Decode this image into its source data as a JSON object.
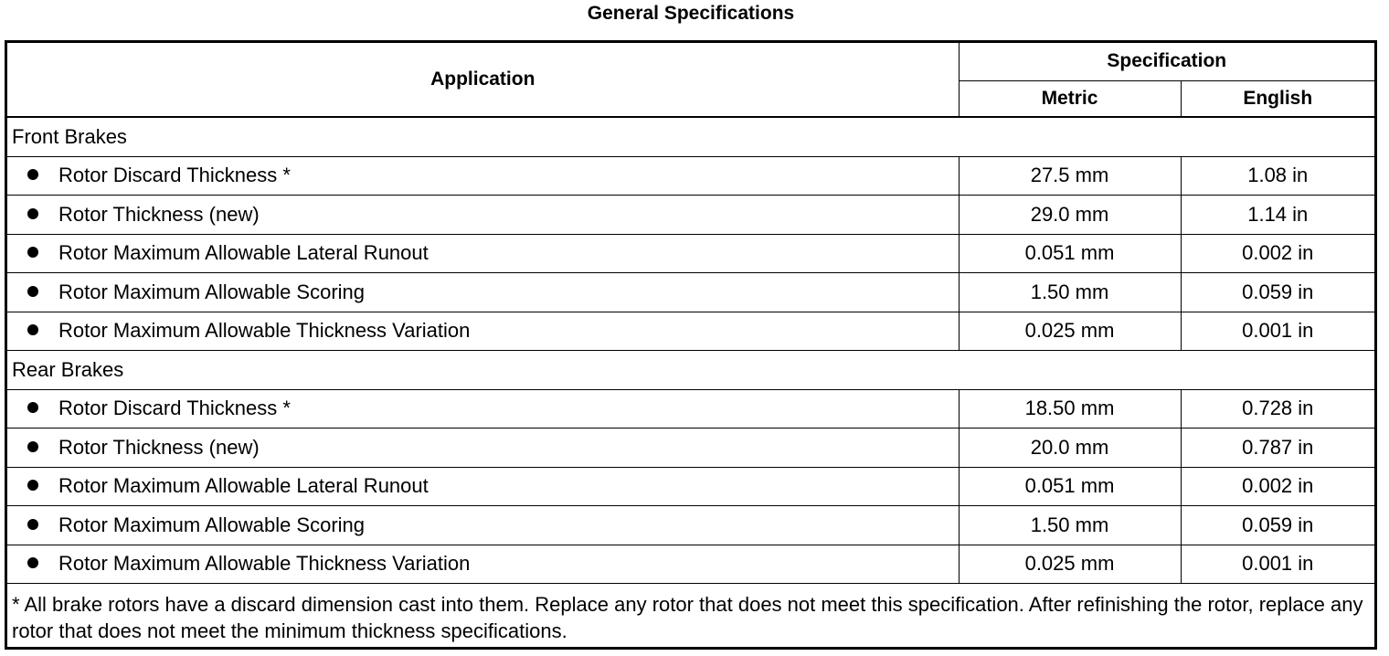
{
  "title": "General Specifications",
  "headers": {
    "application": "Application",
    "specification": "Specification",
    "metric": "Metric",
    "english": "English"
  },
  "groups": [
    {
      "label": "Front Brakes",
      "rows": [
        {
          "name": "Rotor Discard Thickness *",
          "metric": "27.5 mm",
          "english": "1.08 in"
        },
        {
          "name": "Rotor Thickness (new)",
          "metric": "29.0 mm",
          "english": "1.14 in"
        },
        {
          "name": "Rotor Maximum Allowable Lateral Runout",
          "metric": "0.051 mm",
          "english": "0.002 in"
        },
        {
          "name": "Rotor Maximum Allowable Scoring",
          "metric": "1.50 mm",
          "english": "0.059 in"
        },
        {
          "name": "Rotor Maximum Allowable Thickness Variation",
          "metric": "0.025 mm",
          "english": "0.001 in"
        }
      ]
    },
    {
      "label": "Rear Brakes",
      "rows": [
        {
          "name": "Rotor Discard Thickness *",
          "metric": "18.50 mm",
          "english": "0.728 in"
        },
        {
          "name": "Rotor Thickness (new)",
          "metric": "20.0 mm",
          "english": "0.787 in"
        },
        {
          "name": "Rotor Maximum Allowable Lateral Runout",
          "metric": "0.051 mm",
          "english": "0.002 in"
        },
        {
          "name": "Rotor Maximum Allowable Scoring",
          "metric": "1.50 mm",
          "english": "0.059 in"
        },
        {
          "name": "Rotor Maximum Allowable Thickness Variation",
          "metric": "0.025 mm",
          "english": "0.001 in"
        }
      ]
    }
  ],
  "footnote": "* All brake rotors have a discard dimension cast into them. Replace any rotor that does not meet this specification. After refinishing the rotor, replace any rotor that does not meet the minimum thickness specifications."
}
